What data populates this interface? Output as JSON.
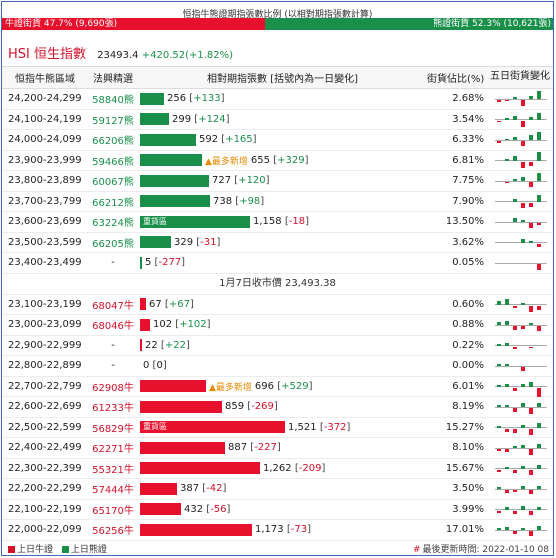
{
  "ratio": {
    "title": "恒指牛熊證期指張數比例 (以相對期指張數計算)",
    "bull_label": "牛證街貨 47.7% (9,690張)",
    "bear_label": "熊證街貨 52.3% (10,621張)",
    "bull_percent": 47.7,
    "bull_color": "#e8112d",
    "bear_color": "#1a8f4a"
  },
  "index": {
    "name": "HSI 恒生指數",
    "price": "23493.4",
    "change": "+420.52(+1.82%)"
  },
  "headers": {
    "range": "恒指牛熊區域",
    "broker": "法興精選",
    "contracts": "相對期指張數 [括號內為一日變化]",
    "share": "街貨佔比(%)",
    "five_day": "五日街貨變化"
  },
  "close_label": "1月7日收市價 23,493.38",
  "max_contracts": 1521,
  "bear_rows": [
    {
      "range": "24,200-24,299",
      "broker": "58840熊",
      "contracts": "256",
      "value": 256,
      "change": "+133",
      "share": "2.68%",
      "spark": [
        -2,
        -1,
        2,
        -6,
        3,
        8
      ]
    },
    {
      "range": "24,100-24,199",
      "broker": "59127熊",
      "contracts": "299",
      "value": 299,
      "change": "+124",
      "share": "3.54%",
      "spark": [
        -1,
        2,
        4,
        -6,
        3,
        7
      ]
    },
    {
      "range": "24,000-24,099",
      "broker": "66206熊",
      "contracts": "592",
      "value": 592,
      "change": "+165",
      "share": "6.33%",
      "spark": [
        -2,
        1,
        3,
        -5,
        5,
        8
      ]
    },
    {
      "range": "23,900-23,999",
      "broker": "59466熊",
      "contracts": "655",
      "value": 655,
      "change": "+329",
      "share": "6.81%",
      "spark": [
        0,
        2,
        5,
        -6,
        -4,
        9
      ],
      "hot": "▲最多新增"
    },
    {
      "range": "23,800-23,899",
      "broker": "60067熊",
      "contracts": "727",
      "value": 727,
      "change": "+120",
      "share": "7.75%",
      "spark": [
        0,
        -1,
        2,
        4,
        -5,
        8
      ]
    },
    {
      "range": "23,700-23,799",
      "broker": "66212熊",
      "contracts": "738",
      "value": 738,
      "change": "+98",
      "share": "7.90%",
      "spark": [
        0,
        0,
        3,
        -5,
        -4,
        7
      ]
    },
    {
      "range": "23,600-23,699",
      "broker": "63224熊",
      "contracts": "1,158",
      "value": 1158,
      "change": "-18",
      "share": "13.50%",
      "spark": [
        0,
        0,
        4,
        2,
        -5,
        -2
      ],
      "label": "重貨區"
    },
    {
      "range": "23,500-23,599",
      "broker": "66205熊",
      "contracts": "329",
      "value": 329,
      "change": "-31",
      "share": "3.62%",
      "spark": [
        0,
        0,
        0,
        4,
        2,
        -3
      ]
    },
    {
      "range": "23,400-23,499",
      "broker": "-",
      "contracts": "5",
      "value": 5,
      "change": "-277",
      "share": "0.05%",
      "spark": [
        0,
        0,
        0,
        0,
        0,
        -6
      ]
    }
  ],
  "bull_rows": [
    {
      "range": "23,100-23,199",
      "broker": "68047牛",
      "contracts": "67",
      "value": 67,
      "change": "+67",
      "share": "0.60%",
      "spark": [
        4,
        6,
        -2,
        2,
        -6,
        -4
      ]
    },
    {
      "range": "23,000-23,099",
      "broker": "68046牛",
      "contracts": "102",
      "value": 102,
      "change": "+102",
      "share": "0.88%",
      "spark": [
        3,
        4,
        -4,
        -3,
        2,
        -5
      ]
    },
    {
      "range": "22,900-22,999",
      "broker": "-",
      "contracts": "22",
      "value": 22,
      "change": "+22",
      "share": "0.22%",
      "spark": [
        2,
        3,
        -2,
        0,
        -1,
        0
      ]
    },
    {
      "range": "22,800-22,899",
      "broker": "-",
      "contracts": "0",
      "value": 0,
      "change": "0",
      "share": "0.00%",
      "spark": [
        2,
        2,
        0,
        -4,
        0,
        0
      ]
    },
    {
      "range": "22,700-22,799",
      "broker": "62908牛",
      "contracts": "696",
      "value": 696,
      "change": "+529",
      "share": "6.01%",
      "spark": [
        2,
        3,
        -3,
        3,
        5,
        -9
      ],
      "hot": "▲最多新增"
    },
    {
      "range": "22,600-22,699",
      "broker": "61233牛",
      "contracts": "859",
      "value": 859,
      "change": "-269",
      "share": "8.19%",
      "spark": [
        2,
        2,
        -4,
        4,
        -6,
        4
      ]
    },
    {
      "range": "22,500-22,599",
      "broker": "56829牛",
      "contracts": "1,521",
      "value": 1521,
      "change": "-372",
      "share": "15.27%",
      "spark": [
        2,
        -3,
        -4,
        3,
        -6,
        5
      ],
      "label": "重貨區"
    },
    {
      "range": "22,400-22,499",
      "broker": "62271牛",
      "contracts": "887",
      "value": 887,
      "change": "-227",
      "share": "8.10%",
      "spark": [
        -2,
        -3,
        2,
        3,
        -6,
        4
      ]
    },
    {
      "range": "22,300-22,399",
      "broker": "55321牛",
      "contracts": "1,262",
      "value": 1262,
      "change": "-209",
      "share": "15.67%",
      "spark": [
        -2,
        2,
        -3,
        3,
        -5,
        4
      ]
    },
    {
      "range": "22,200-22,299",
      "broker": "57444牛",
      "contracts": "387",
      "value": 387,
      "change": "-42",
      "share": "3.50%",
      "spark": [
        2,
        -3,
        -2,
        3,
        -4,
        3
      ]
    },
    {
      "range": "22,100-22,199",
      "broker": "65170牛",
      "contracts": "432",
      "value": 432,
      "change": "-56",
      "share": "3.99%",
      "spark": [
        -2,
        3,
        -3,
        4,
        -4,
        3
      ]
    },
    {
      "range": "22,000-22,099",
      "broker": "56256牛",
      "contracts": "1,173",
      "value": 1173,
      "change": "-73",
      "share": "17.01%",
      "spark": [
        2,
        3,
        -3,
        2,
        -5,
        4
      ]
    }
  ],
  "legend": {
    "bull": "上日牛證",
    "bear": "上日熊證"
  },
  "updated": "最後更新時間: 2022-01-10 08"
}
